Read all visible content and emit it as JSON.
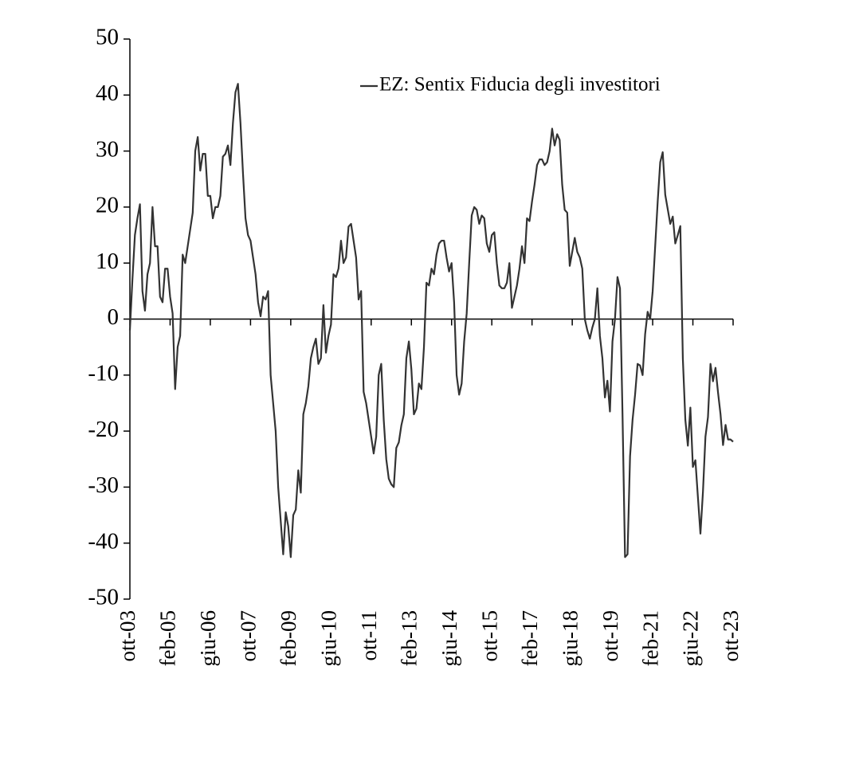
{
  "chart_data": {
    "type": "line",
    "categories": [
      "ott-03",
      null,
      null,
      null,
      null,
      null,
      null,
      null,
      null,
      null,
      null,
      null,
      null,
      null,
      null,
      null,
      "feb-05",
      null,
      null,
      null,
      null,
      null,
      null,
      null,
      null,
      null,
      null,
      null,
      null,
      null,
      null,
      null,
      "giu-06",
      null,
      null,
      null,
      null,
      null,
      null,
      null,
      null,
      null,
      null,
      null,
      null,
      null,
      null,
      null,
      "ott-07",
      null,
      null,
      null,
      null,
      null,
      null,
      null,
      null,
      null,
      null,
      null,
      null,
      null,
      null,
      null,
      "feb-09",
      null,
      null,
      null,
      null,
      null,
      null,
      null,
      null,
      null,
      null,
      null,
      null,
      null,
      null,
      null,
      "giu-10",
      null,
      null,
      null,
      null,
      null,
      null,
      null,
      null,
      null,
      null,
      null,
      null,
      null,
      null,
      null,
      "ott-11",
      null,
      null,
      null,
      null,
      null,
      null,
      null,
      null,
      null,
      null,
      null,
      null,
      null,
      null,
      null,
      "feb-13",
      null,
      null,
      null,
      null,
      null,
      null,
      null,
      null,
      null,
      null,
      null,
      null,
      null,
      null,
      null,
      "giu-14",
      null,
      null,
      null,
      null,
      null,
      null,
      null,
      null,
      null,
      null,
      null,
      null,
      null,
      null,
      null,
      "ott-15",
      null,
      null,
      null,
      null,
      null,
      null,
      null,
      null,
      null,
      null,
      null,
      null,
      null,
      null,
      null,
      "feb-17",
      null,
      null,
      null,
      null,
      null,
      null,
      null,
      null,
      null,
      null,
      null,
      null,
      null,
      null,
      null,
      "giu-18",
      null,
      null,
      null,
      null,
      null,
      null,
      null,
      null,
      null,
      null,
      null,
      null,
      null,
      null,
      null,
      "ott-19",
      null,
      null,
      null,
      null,
      null,
      null,
      null,
      null,
      null,
      null,
      null,
      null,
      null,
      null,
      null,
      "feb-21",
      null,
      null,
      null,
      null,
      null,
      null,
      null,
      null,
      null,
      null,
      null,
      null,
      null,
      null,
      null,
      "giu-22",
      null,
      null,
      null,
      null,
      null,
      null,
      null,
      null,
      null,
      null,
      null,
      null,
      null,
      null,
      null,
      "ott-23"
    ],
    "series": [
      {
        "name": "EZ: Sentix Fiducia degli investitori",
        "color": "#333333",
        "values": [
          -2,
          7,
          15,
          18,
          20.5,
          5,
          1.5,
          8,
          10,
          20,
          13,
          13,
          4,
          3,
          9,
          9,
          4,
          1,
          -12.5,
          -5,
          -3,
          11.5,
          10,
          13,
          16,
          19,
          30,
          32.5,
          26.5,
          29.5,
          29.5,
          22,
          22,
          18,
          20,
          20,
          22,
          29,
          29.5,
          31,
          27.5,
          35,
          40.5,
          42,
          35,
          26,
          18,
          15,
          14,
          11,
          8,
          3,
          0.5,
          4,
          3.5,
          5,
          -10,
          -15,
          -20,
          -30,
          -36,
          -42,
          -34.5,
          -37,
          -42.5,
          -35,
          -34,
          -27,
          -31,
          -17,
          -15,
          -12,
          -7,
          -5,
          -3.5,
          -8,
          -7,
          2.5,
          -6,
          -3,
          -1,
          8,
          7.5,
          9,
          14,
          10,
          11,
          16.5,
          17,
          14,
          11,
          3.5,
          5,
          -13,
          -15,
          -18,
          -21,
          -24,
          -21,
          -10,
          -8,
          -18,
          -25,
          -28.5,
          -29.5,
          -30,
          -23,
          -22,
          -19,
          -17,
          -7,
          -4,
          -9,
          -17,
          -16,
          -11.5,
          -12.5,
          -5,
          6.5,
          6,
          9,
          8,
          11.5,
          13.5,
          14,
          14,
          11,
          8.5,
          10,
          3,
          -10,
          -13.5,
          -11.5,
          -4,
          1,
          10,
          18.5,
          20,
          19.5,
          17,
          18.5,
          18,
          13.5,
          12,
          15,
          15.5,
          10,
          6,
          5.5,
          5.5,
          6.5,
          10,
          2,
          4,
          6,
          9,
          13,
          10,
          18,
          17.5,
          21,
          24,
          27.5,
          28.5,
          28.5,
          27.5,
          28,
          30,
          34,
          31,
          33,
          32,
          24,
          19.5,
          19,
          9.5,
          12,
          14.5,
          12,
          11,
          9,
          0,
          -2,
          -3.5,
          -1.5,
          0,
          5.5,
          -3,
          -7,
          -14,
          -11,
          -16.5,
          -4,
          0,
          7.5,
          5.5,
          -17,
          -42.5,
          -42,
          -24.5,
          -18,
          -13.5,
          -8,
          -8.3,
          -10,
          -2.7,
          1.3,
          0,
          5,
          13,
          21,
          28,
          29.8,
          22.2,
          19.6,
          17,
          18.3,
          13.5,
          15,
          16.6,
          -7,
          -18,
          -22.6,
          -15.8,
          -26.4,
          -25.2,
          -31.8,
          -38.3,
          -30.9,
          -21,
          -17.5,
          -8,
          -11.1,
          -8.7,
          -13.1,
          -17,
          -22.5,
          -18.9,
          -21.5,
          -21.5,
          -21.9
        ]
      }
    ],
    "ylim": [
      -50,
      50
    ],
    "yticks": [
      -50,
      -40,
      -30,
      -20,
      -10,
      0,
      10,
      20,
      30,
      40,
      50
    ],
    "grid": false,
    "legend": "upper right"
  }
}
